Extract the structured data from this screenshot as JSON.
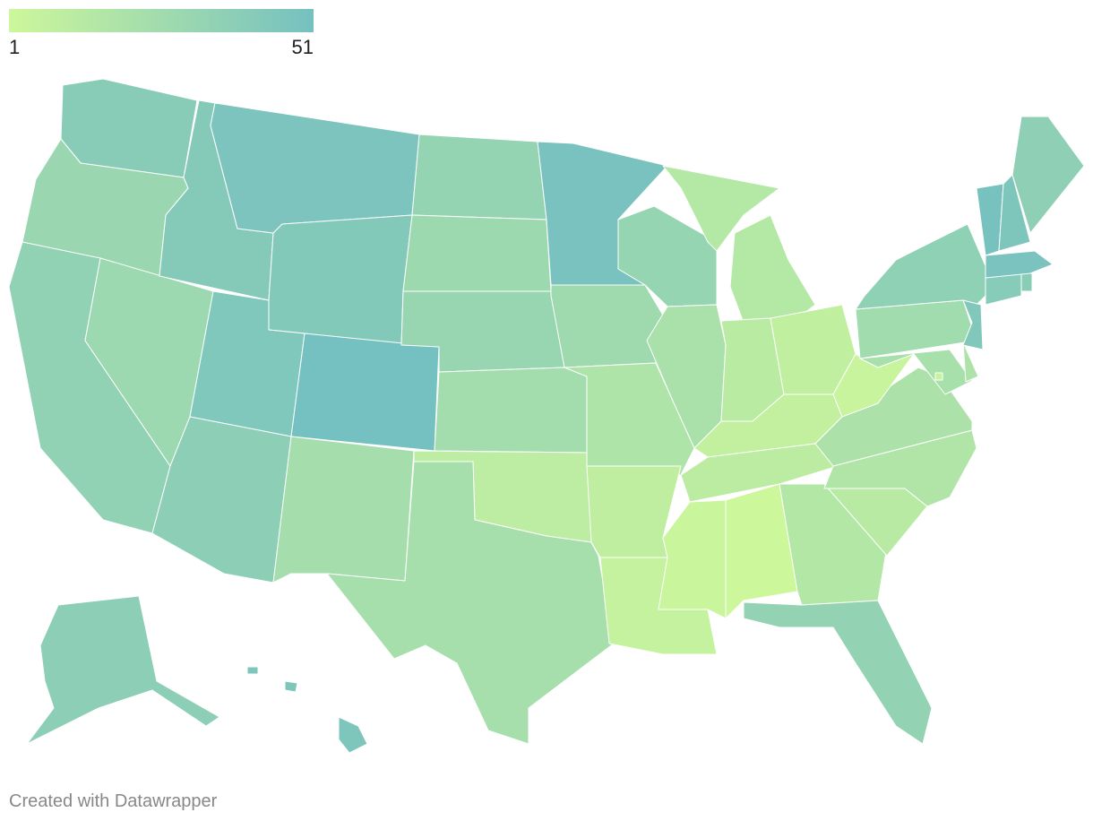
{
  "legend": {
    "min": 1,
    "max": 51,
    "colors": [
      "#cdf79b",
      "#75c0c0"
    ]
  },
  "regions": [
    40,
    30,
    35,
    29,
    42,
    47,
    43,
    45,
    51,
    38,
    24,
    33,
    28,
    31,
    25,
    10,
    23,
    49,
    27,
    18,
    9,
    6,
    32,
    21,
    15,
    12,
    8,
    7,
    11,
    3,
    1,
    16,
    34,
    13,
    17,
    20,
    4,
    26,
    36,
    22,
    19,
    44,
    5,
    41,
    39,
    48,
    50,
    46,
    37,
    38,
    46
  ],
  "footer": "Created with Datawrapper"
}
